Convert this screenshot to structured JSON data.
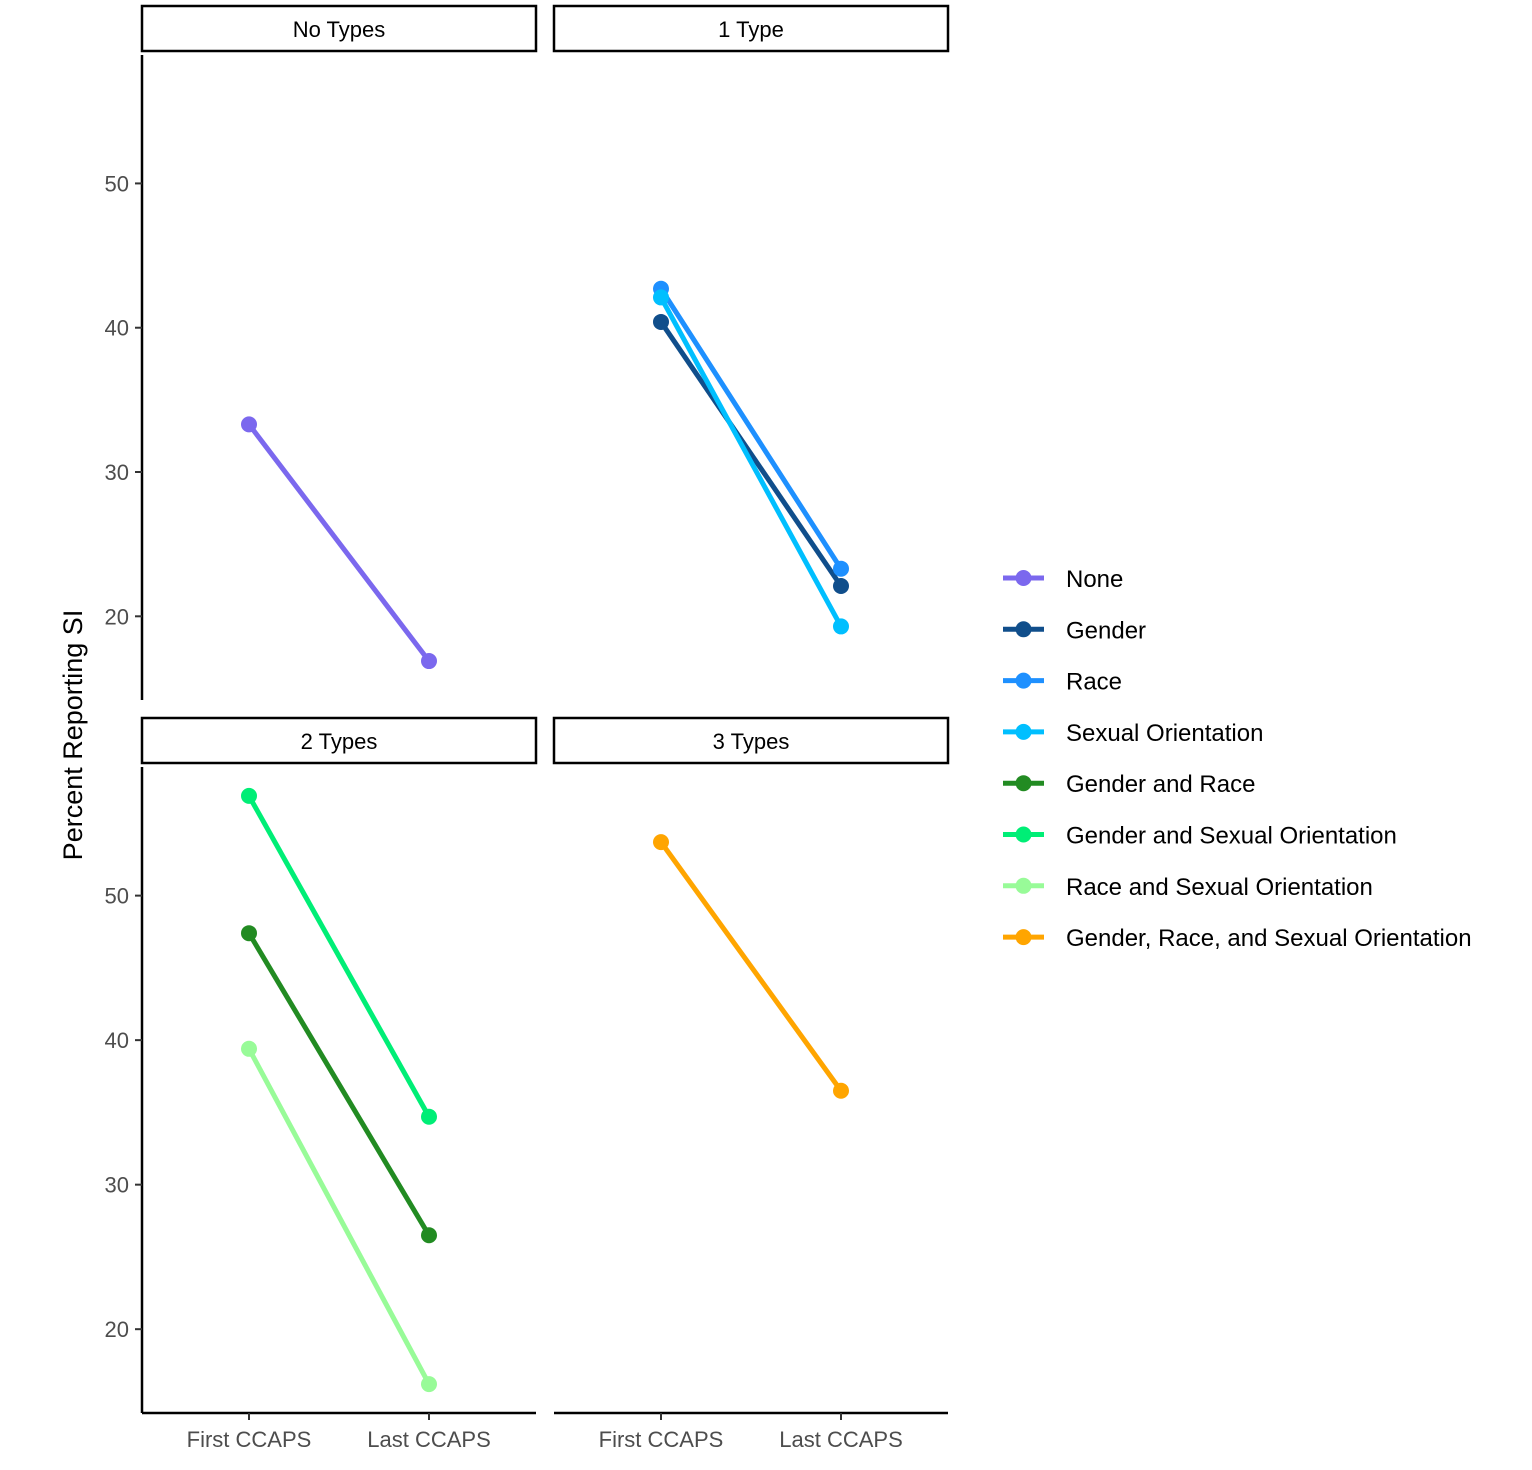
{
  "chart_data": {
    "type": "line",
    "ylabel": "Percent Reporting SI",
    "xlabel": "",
    "categories": [
      "First CCAPS",
      "Last CCAPS"
    ],
    "yticks": [
      20,
      30,
      40,
      50
    ],
    "facets": [
      {
        "title": "No Types",
        "ylim": [
          14.2,
          58.9
        ],
        "series": [
          {
            "name": "None",
            "color": "#7B68EE",
            "values": [
              33.3,
              16.9
            ]
          }
        ]
      },
      {
        "title": "1 Type",
        "ylim": [
          14.2,
          58.9
        ],
        "series": [
          {
            "name": "Gender",
            "color": "#104E8B",
            "values": [
              40.4,
              22.1
            ]
          },
          {
            "name": "Race",
            "color": "#1E90FF",
            "values": [
              42.7,
              23.3
            ]
          },
          {
            "name": "Sexual Orientation",
            "color": "#00BFFF",
            "values": [
              42.1,
              19.3
            ]
          }
        ]
      },
      {
        "title": "2 Types",
        "ylim": [
          14.2,
          58.9
        ],
        "series": [
          {
            "name": "Gender and Race",
            "color": "#228B22",
            "values": [
              47.4,
              26.5
            ]
          },
          {
            "name": "Gender and Sexual Orientation",
            "color": "#00EE76",
            "values": [
              56.9,
              34.7
            ]
          },
          {
            "name": "Race and Sexual Orientation",
            "color": "#98FB98",
            "values": [
              39.4,
              16.2
            ]
          }
        ]
      },
      {
        "title": "3 Types",
        "ylim": [
          14.2,
          58.9
        ],
        "series": [
          {
            "name": "Gender, Race, and Sexual Orientation",
            "color": "#FFA500",
            "values": [
              53.7,
              36.5
            ]
          }
        ]
      }
    ],
    "legend": {
      "position": "right",
      "entries": [
        {
          "label": "None",
          "color": "#7B68EE"
        },
        {
          "label": "Gender",
          "color": "#104E8B"
        },
        {
          "label": "Race",
          "color": "#1E90FF"
        },
        {
          "label": "Sexual Orientation",
          "color": "#00BFFF"
        },
        {
          "label": "Gender and Race",
          "color": "#228B22"
        },
        {
          "label": "Gender and Sexual Orientation",
          "color": "#00EE76"
        },
        {
          "label": "Race and Sexual Orientation",
          "color": "#98FB98"
        },
        {
          "label": "Gender, Race, and Sexual Orientation",
          "color": "#FFA500"
        }
      ]
    }
  }
}
